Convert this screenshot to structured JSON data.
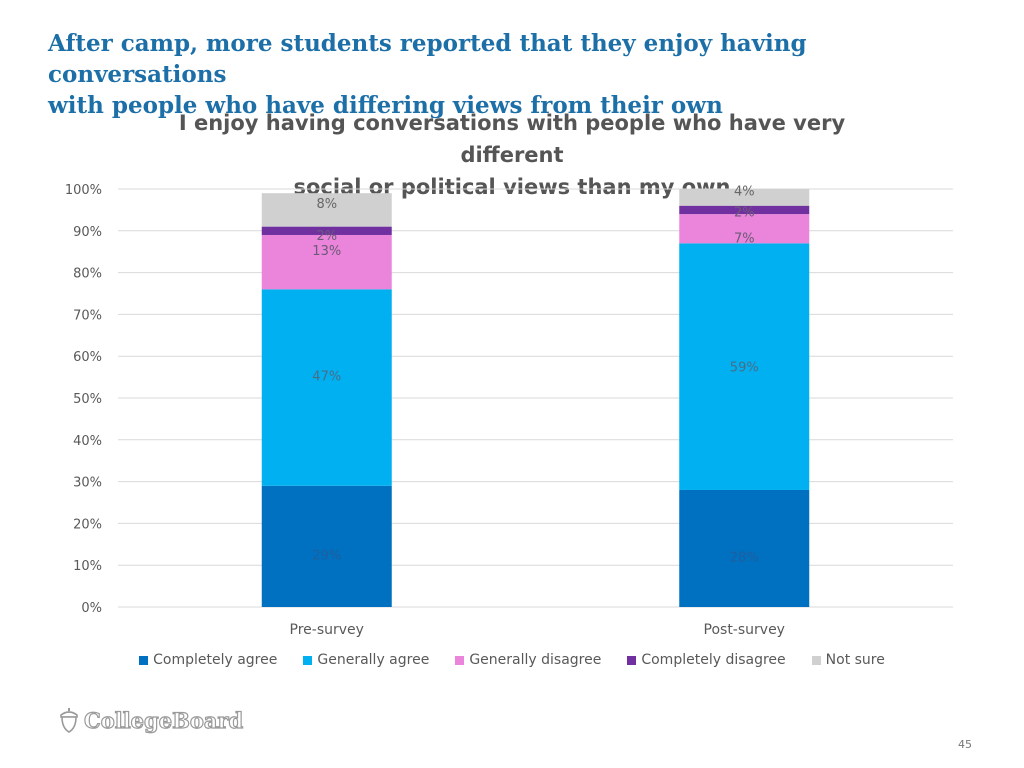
{
  "headline": {
    "line1": "After camp, more students reported that they enjoy having conversations",
    "line2": "with people who have differing views from their own"
  },
  "chart_data": {
    "type": "bar",
    "stacked": true,
    "title_line1": "I enjoy having conversations with people who have very different",
    "title_line2": "social or political views than my own",
    "categories": [
      "Pre-survey",
      "Post-survey"
    ],
    "ylim": [
      0,
      100
    ],
    "yticks": [
      "0%",
      "10%",
      "20%",
      "30%",
      "40%",
      "50%",
      "60%",
      "70%",
      "80%",
      "90%",
      "100%"
    ],
    "grid": true,
    "legend_position": "bottom",
    "series": [
      {
        "name": "Completely agree",
        "color": "#0070c0",
        "values": [
          29,
          28
        ],
        "labels": [
          "29%",
          "28%"
        ],
        "label_color": "#1f5f9e"
      },
      {
        "name": "Generally agree",
        "color": "#00b0f0",
        "values": [
          47,
          59
        ],
        "labels": [
          "47%",
          "59%"
        ],
        "label_color": "#4a6d86"
      },
      {
        "name": "Generally disagree",
        "color": "#ea85db",
        "values": [
          13,
          7
        ],
        "labels": [
          "13%",
          "7%"
        ],
        "label_color": "#6a5a73"
      },
      {
        "name": "Completely disagree",
        "color": "#7030a0",
        "values": [
          2,
          2
        ],
        "labels": [
          "2%",
          "2%"
        ],
        "label_color": "#6b5a7a"
      },
      {
        "name": "Not sure",
        "color": "#d0d0d0",
        "values": [
          8,
          4
        ],
        "labels": [
          "8%",
          "4%"
        ],
        "label_color": "#666666"
      }
    ]
  },
  "footer": {
    "logo_text": "CollegeBoard",
    "page_number": "45"
  }
}
